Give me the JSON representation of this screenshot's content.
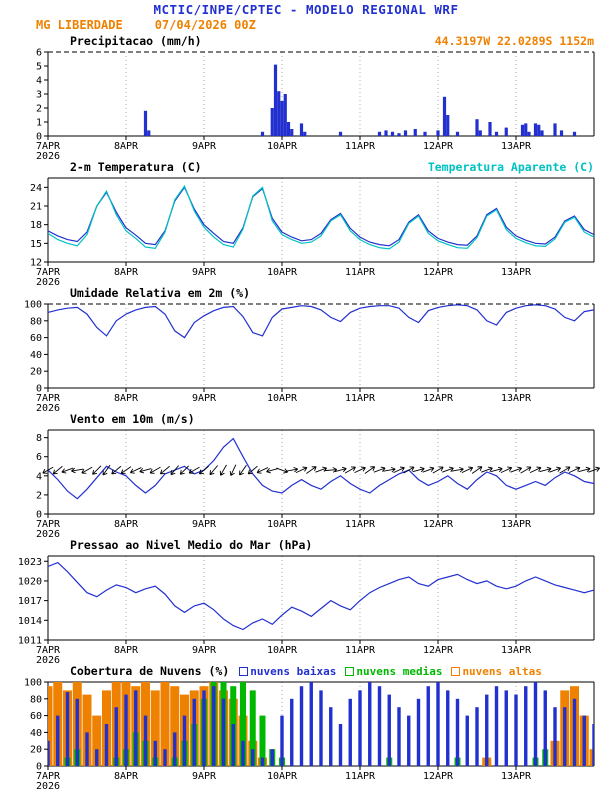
{
  "header": {
    "title": "MCTIC/INPE/CPTEC - MODELO REGIONAL WRF",
    "station": "MG LIBERDADE",
    "run": "07/04/2026 00Z",
    "coords": "44.3197W 22.0289S 1152m"
  },
  "colors": {
    "blue": "#2230cf",
    "cyan": "#00c2c2",
    "orange": "#ef8100",
    "green": "#00b800",
    "black": "#000000"
  },
  "x_axis": {
    "tick_labels": [
      "7APR",
      "8APR",
      "9APR",
      "10APR",
      "11APR",
      "12APR",
      "13APR"
    ],
    "tick_hours": [
      0,
      24,
      48,
      72,
      96,
      120,
      144
    ],
    "year_label": "2026",
    "hours_total": 168
  },
  "chart_data": [
    {
      "type": "bar",
      "title": "Precipitacao (mm/h)",
      "ylim": [
        0,
        6
      ],
      "yticks": [
        0,
        1,
        2,
        3,
        4,
        5,
        6
      ],
      "top_dashed": true,
      "bar_color": "blue",
      "points": [
        [
          30,
          1.8
        ],
        [
          31,
          0.4
        ],
        [
          66,
          0.3
        ],
        [
          69,
          2.0
        ],
        [
          70,
          5.1
        ],
        [
          71,
          3.2
        ],
        [
          72,
          2.5
        ],
        [
          73,
          3.0
        ],
        [
          74,
          1.0
        ],
        [
          75,
          0.5
        ],
        [
          78,
          0.9
        ],
        [
          79,
          0.3
        ],
        [
          90,
          0.3
        ],
        [
          102,
          0.3
        ],
        [
          104,
          0.4
        ],
        [
          106,
          0.3
        ],
        [
          108,
          0.2
        ],
        [
          110,
          0.4
        ],
        [
          113,
          0.5
        ],
        [
          116,
          0.3
        ],
        [
          120,
          0.4
        ],
        [
          122,
          2.8
        ],
        [
          123,
          1.5
        ],
        [
          126,
          0.3
        ],
        [
          132,
          1.2
        ],
        [
          133,
          0.4
        ],
        [
          136,
          1.0
        ],
        [
          138,
          0.3
        ],
        [
          141,
          0.6
        ],
        [
          146,
          0.8
        ],
        [
          147,
          0.9
        ],
        [
          148,
          0.3
        ],
        [
          150,
          0.9
        ],
        [
          151,
          0.8
        ],
        [
          152,
          0.4
        ],
        [
          156,
          0.9
        ],
        [
          158,
          0.4
        ],
        [
          162,
          0.3
        ]
      ]
    },
    {
      "type": "line",
      "title": "2-m Temperatura (C)",
      "right_title": "Temperatura Aparente (C)",
      "ylim": [
        12,
        25.5
      ],
      "yticks": [
        12,
        15,
        18,
        21,
        24
      ],
      "step_hours": 3,
      "series": [
        {
          "name": "2-m Temperatura (C)",
          "color": "blue",
          "values": [
            17.0,
            16.2,
            15.6,
            15.3,
            16.8,
            21.0,
            23.2,
            20.0,
            17.5,
            16.3,
            15.0,
            14.8,
            17.0,
            21.8,
            24.0,
            20.5,
            18.0,
            16.6,
            15.3,
            15.0,
            17.5,
            22.5,
            23.8,
            19.0,
            16.8,
            16.0,
            15.4,
            15.6,
            16.6,
            18.8,
            19.8,
            17.4,
            16.0,
            15.2,
            14.8,
            14.6,
            15.6,
            18.4,
            19.6,
            17.0,
            15.8,
            15.2,
            14.8,
            14.7,
            16.2,
            19.6,
            20.6,
            17.6,
            16.2,
            15.5,
            15.0,
            14.9,
            16.0,
            18.6,
            19.4,
            17.2,
            16.4
          ]
        },
        {
          "name": "Temperatura Aparente (C)",
          "color": "cyan",
          "values": [
            16.6,
            15.6,
            15.0,
            14.6,
            16.4,
            21.0,
            23.4,
            19.6,
            17.0,
            15.8,
            14.4,
            14.2,
            16.8,
            22.0,
            24.2,
            20.2,
            17.6,
            16.0,
            14.8,
            14.4,
            17.3,
            22.6,
            24.0,
            18.6,
            16.4,
            15.6,
            15.0,
            15.2,
            16.2,
            18.6,
            19.6,
            17.0,
            15.6,
            14.8,
            14.3,
            14.1,
            15.2,
            18.2,
            19.4,
            16.6,
            15.4,
            14.8,
            14.3,
            14.2,
            15.9,
            19.4,
            20.4,
            17.2,
            15.8,
            15.1,
            14.6,
            14.5,
            15.7,
            18.4,
            19.2,
            16.8,
            16.0
          ]
        }
      ]
    },
    {
      "type": "line",
      "title": "Umidade Relativa em 2m (%)",
      "ylim": [
        0,
        100
      ],
      "yticks": [
        0,
        20,
        40,
        60,
        80,
        100
      ],
      "top_dashed": true,
      "step_hours": 3,
      "series": [
        {
          "name": "Umidade Relativa em 2m (%)",
          "color": "blue",
          "values": [
            90,
            93,
            95,
            96,
            88,
            72,
            62,
            80,
            88,
            93,
            96,
            97,
            88,
            68,
            60,
            78,
            86,
            92,
            96,
            97,
            85,
            66,
            62,
            84,
            94,
            96,
            98,
            97,
            93,
            84,
            79,
            90,
            95,
            97,
            98,
            98,
            95,
            84,
            78,
            92,
            96,
            98,
            99,
            98,
            93,
            80,
            75,
            90,
            95,
            98,
            99,
            98,
            94,
            84,
            80,
            91,
            93
          ]
        }
      ]
    },
    {
      "type": "wind",
      "title": "Vento em 10m (m/s)",
      "ylim": [
        0,
        8.8
      ],
      "yticks": [
        0,
        2,
        4,
        6,
        8
      ],
      "step_hours": 3,
      "barb_level": 4.6,
      "speed": [
        4.6,
        3.6,
        2.4,
        1.6,
        2.6,
        3.8,
        5.0,
        4.4,
        4.0,
        3.0,
        2.2,
        3.0,
        4.2,
        4.6,
        5.0,
        4.2,
        4.6,
        5.6,
        7.0,
        7.9,
        6.0,
        4.2,
        3.0,
        2.4,
        2.2,
        3.0,
        3.6,
        3.0,
        2.6,
        3.4,
        4.0,
        3.2,
        2.6,
        2.2,
        3.0,
        3.6,
        4.2,
        4.6,
        3.6,
        3.0,
        3.4,
        4.0,
        3.2,
        2.6,
        3.6,
        4.4,
        4.0,
        3.0,
        2.6,
        3.0,
        3.4,
        3.0,
        3.8,
        4.4,
        4.0,
        3.4,
        3.2
      ],
      "dir_deg": [
        150,
        140,
        160,
        170,
        150,
        135,
        125,
        140,
        145,
        155,
        165,
        150,
        140,
        130,
        135,
        150,
        140,
        130,
        120,
        115,
        125,
        140,
        155,
        165,
        20,
        -10,
        -25,
        -35,
        -20,
        -5,
        -15,
        -30,
        -25,
        -35,
        -20,
        -10,
        -25,
        -30,
        -15,
        -20,
        -30,
        -20,
        -10,
        -25,
        -35,
        -20,
        -15,
        -25,
        -20,
        -30,
        -25,
        -15,
        -20,
        -30,
        -25,
        -15,
        -20
      ]
    },
    {
      "type": "line",
      "title": "Pressao ao Nivel Medio do Mar (hPa)",
      "ylim": [
        1011,
        1023.8
      ],
      "yticks": [
        1011,
        1014,
        1017,
        1020,
        1023
      ],
      "step_hours": 3,
      "series": [
        {
          "name": "Pressao ao Nivel Medio do Mar (hPa)",
          "color": "blue",
          "values": [
            1022.2,
            1022.8,
            1021.4,
            1019.8,
            1018.2,
            1017.6,
            1018.6,
            1019.4,
            1019.0,
            1018.2,
            1018.8,
            1019.2,
            1018.0,
            1016.2,
            1015.2,
            1016.2,
            1016.6,
            1015.6,
            1014.2,
            1013.2,
            1012.6,
            1013.6,
            1014.2,
            1013.4,
            1014.8,
            1016.0,
            1015.4,
            1014.6,
            1015.8,
            1017.0,
            1016.2,
            1015.6,
            1017.0,
            1018.2,
            1019.0,
            1019.6,
            1020.2,
            1020.6,
            1019.6,
            1019.2,
            1020.2,
            1020.6,
            1021.0,
            1020.2,
            1019.6,
            1020.0,
            1019.2,
            1018.8,
            1019.2,
            1020.0,
            1020.6,
            1020.0,
            1019.4,
            1019.0,
            1018.6,
            1018.2,
            1018.6
          ]
        }
      ]
    },
    {
      "type": "cloud-bars",
      "title": "Cobertura de Nuvens (%)",
      "ylim": [
        0,
        100
      ],
      "yticks": [
        0,
        20,
        40,
        60,
        80,
        100
      ],
      "step_hours": 3,
      "legend": [
        {
          "label": "nuvens baixas",
          "color": "blue"
        },
        {
          "label": "nuvens medias",
          "color": "green"
        },
        {
          "label": "nuvens altas",
          "color": "orange"
        }
      ],
      "series": [
        {
          "name": "nuvens altas",
          "color": "orange",
          "values": [
            95,
            100,
            90,
            100,
            85,
            60,
            90,
            100,
            100,
            95,
            100,
            90,
            100,
            95,
            85,
            90,
            95,
            100,
            90,
            80,
            60,
            30,
            10,
            0,
            0,
            0,
            0,
            0,
            0,
            0,
            0,
            0,
            0,
            0,
            0,
            0,
            0,
            0,
            0,
            0,
            0,
            0,
            0,
            0,
            0,
            10,
            0,
            0,
            0,
            0,
            0,
            0,
            30,
            90,
            95,
            60,
            20
          ]
        },
        {
          "name": "nuvens medias",
          "color": "green",
          "values": [
            0,
            0,
            10,
            20,
            0,
            0,
            0,
            10,
            20,
            40,
            30,
            10,
            0,
            10,
            30,
            50,
            80,
            100,
            100,
            95,
            100,
            90,
            60,
            20,
            10,
            0,
            0,
            0,
            0,
            0,
            0,
            0,
            0,
            0,
            0,
            10,
            0,
            0,
            0,
            0,
            0,
            0,
            10,
            0,
            0,
            0,
            0,
            0,
            0,
            0,
            10,
            20,
            0,
            0,
            0,
            0,
            0
          ]
        },
        {
          "name": "nuvens baixas",
          "color": "blue",
          "values": [
            30,
            60,
            88,
            80,
            40,
            20,
            50,
            70,
            85,
            90,
            60,
            30,
            20,
            40,
            60,
            80,
            90,
            95,
            80,
            50,
            30,
            20,
            10,
            20,
            60,
            80,
            95,
            100,
            90,
            70,
            50,
            80,
            90,
            100,
            95,
            85,
            70,
            60,
            80,
            95,
            100,
            90,
            80,
            60,
            70,
            85,
            95,
            90,
            85,
            95,
            100,
            90,
            70,
            70,
            80,
            60,
            50
          ]
        }
      ]
    }
  ]
}
